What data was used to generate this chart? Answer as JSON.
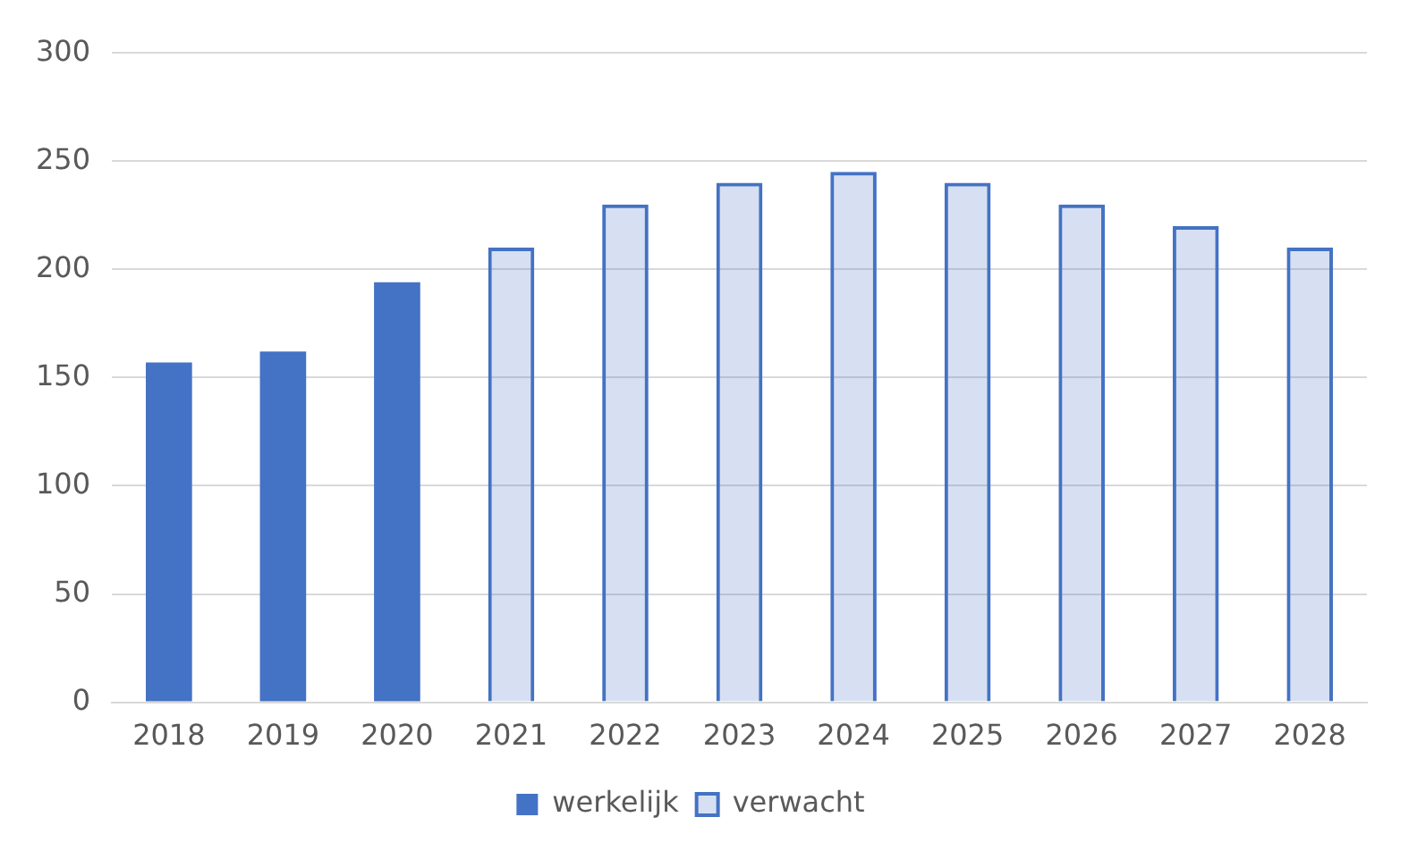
{
  "chart_data": {
    "type": "bar",
    "categories": [
      "2018",
      "2019",
      "2020",
      "2021",
      "2022",
      "2023",
      "2024",
      "2025",
      "2026",
      "2027",
      "2028"
    ],
    "series": [
      {
        "name": "werkelijk",
        "color": "#4472c4",
        "values": [
          157,
          162,
          194,
          null,
          null,
          null,
          null,
          null,
          null,
          null,
          null
        ]
      },
      {
        "name": "verwacht",
        "color": "#4472c4",
        "values": [
          null,
          null,
          null,
          210,
          230,
          240,
          245,
          240,
          230,
          220,
          210
        ]
      }
    ],
    "ylim": [
      0,
      300
    ],
    "yticks": [
      0,
      50,
      100,
      150,
      200,
      250,
      300
    ],
    "grid": "y",
    "legend": "bottom"
  }
}
